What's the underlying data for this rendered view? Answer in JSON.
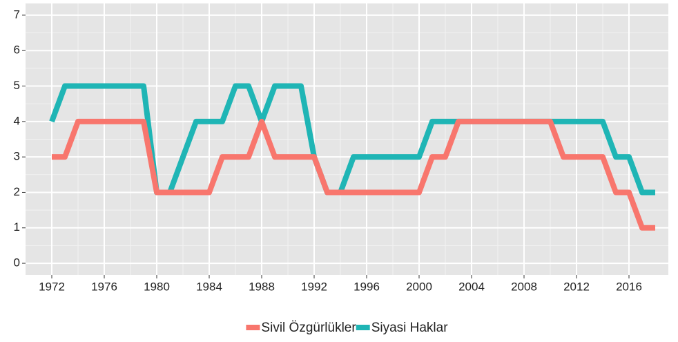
{
  "chart_data": {
    "type": "line",
    "x": [
      1972,
      1973,
      1974,
      1975,
      1976,
      1977,
      1978,
      1979,
      1980,
      1981,
      1982,
      1983,
      1984,
      1985,
      1986,
      1987,
      1988,
      1989,
      1990,
      1991,
      1992,
      1993,
      1994,
      1995,
      1996,
      1997,
      1998,
      1999,
      2000,
      2001,
      2002,
      2003,
      2004,
      2005,
      2006,
      2007,
      2008,
      2009,
      2010,
      2011,
      2012,
      2013,
      2014,
      2015,
      2016,
      2017,
      2018
    ],
    "series": [
      {
        "name": "Sivil Özgürlükler",
        "color": "#f8766d",
        "values": [
          3,
          3,
          4,
          4,
          4,
          4,
          4,
          4,
          2,
          2,
          2,
          2,
          2,
          3,
          3,
          3,
          4,
          3,
          3,
          3,
          3,
          2,
          2,
          2,
          2,
          2,
          2,
          2,
          2,
          3,
          3,
          4,
          4,
          4,
          4,
          4,
          4,
          4,
          4,
          3,
          3,
          3,
          3,
          2,
          2,
          1,
          1
        ]
      },
      {
        "name": "Siyasi Haklar",
        "color": "#1fb5b5",
        "values": [
          4,
          5,
          5,
          5,
          5,
          5,
          5,
          5,
          2,
          2,
          3,
          4,
          4,
          4,
          5,
          5,
          4,
          5,
          5,
          5,
          3,
          2,
          2,
          3,
          3,
          3,
          3,
          3,
          3,
          4,
          4,
          4,
          4,
          4,
          4,
          4,
          4,
          4,
          4,
          4,
          4,
          4,
          4,
          3,
          3,
          2,
          2
        ]
      }
    ],
    "xlim": [
      1970,
      2019
    ],
    "xticks": [
      1972,
      1976,
      1980,
      1984,
      1988,
      1992,
      1996,
      2000,
      2004,
      2008,
      2012,
      2016
    ],
    "ylim": [
      -0.33,
      7.33
    ],
    "yticks": [
      0,
      1,
      2,
      3,
      4,
      5,
      6,
      7
    ],
    "grid": true,
    "legend": "bottom"
  }
}
